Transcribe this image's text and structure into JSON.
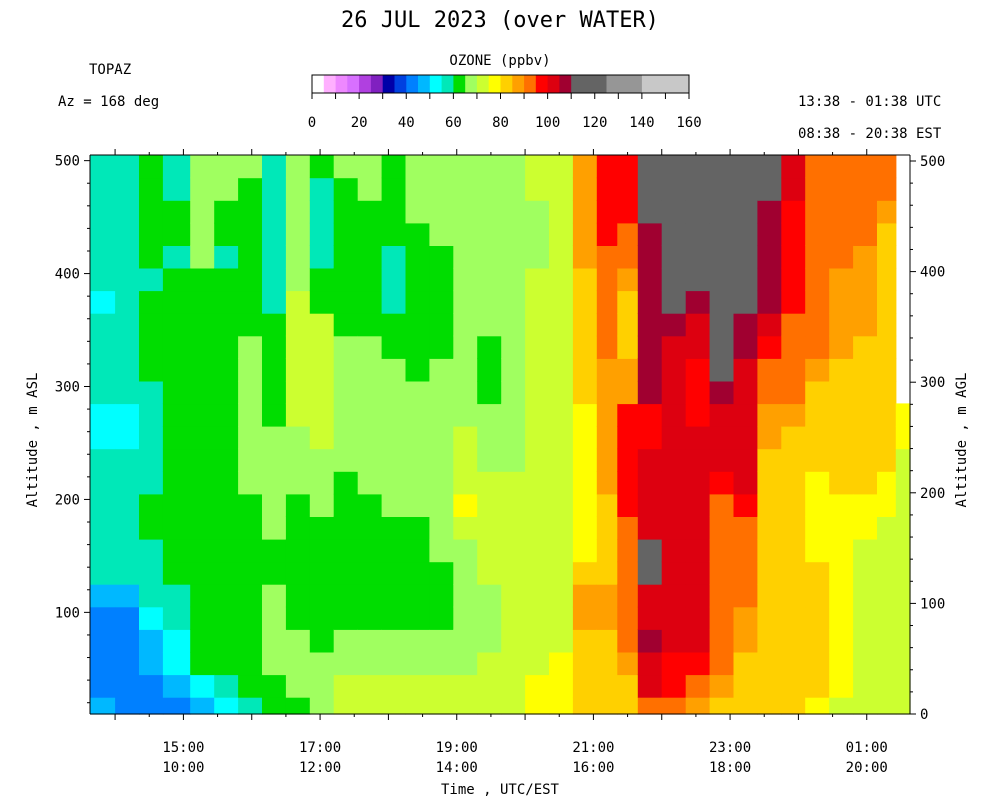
{
  "header": {
    "title": "26 JUL 2023 (over WATER)",
    "site": "TOPAZ",
    "azimuth": "Az = 168 deg",
    "time_utc": "13:38 - 01:38 UTC",
    "time_est": "08:38 - 20:38 EST"
  },
  "colorbar": {
    "title": "OZONE (ppbv)",
    "ticks": [
      "0",
      "20",
      "40",
      "60",
      "80",
      "100",
      "120",
      "140",
      "160"
    ],
    "range": [
      0,
      160
    ],
    "bins": [
      {
        "from": 0,
        "to": 5,
        "color": "#ffffff"
      },
      {
        "from": 5,
        "to": 10,
        "color": "#ffb0ff"
      },
      {
        "from": 10,
        "to": 15,
        "color": "#ee88ff"
      },
      {
        "from": 15,
        "to": 20,
        "color": "#d870ff"
      },
      {
        "from": 20,
        "to": 25,
        "color": "#b040e0"
      },
      {
        "from": 25,
        "to": 30,
        "color": "#8020c0"
      },
      {
        "from": 30,
        "to": 35,
        "color": "#0000a8"
      },
      {
        "from": 35,
        "to": 40,
        "color": "#0040e0"
      },
      {
        "from": 40,
        "to": 45,
        "color": "#0080ff"
      },
      {
        "from": 45,
        "to": 50,
        "color": "#00b8ff"
      },
      {
        "from": 50,
        "to": 55,
        "color": "#00ffff"
      },
      {
        "from": 55,
        "to": 60,
        "color": "#00e8b8"
      },
      {
        "from": 60,
        "to": 65,
        "color": "#00dd00"
      },
      {
        "from": 65,
        "to": 70,
        "color": "#a0ff60"
      },
      {
        "from": 70,
        "to": 75,
        "color": "#ccff30"
      },
      {
        "from": 75,
        "to": 80,
        "color": "#ffff00"
      },
      {
        "from": 80,
        "to": 85,
        "color": "#ffd000"
      },
      {
        "from": 85,
        "to": 90,
        "color": "#ffa000"
      },
      {
        "from": 90,
        "to": 95,
        "color": "#ff7000"
      },
      {
        "from": 95,
        "to": 100,
        "color": "#ff0000"
      },
      {
        "from": 100,
        "to": 105,
        "color": "#dd0010"
      },
      {
        "from": 105,
        "to": 110,
        "color": "#a00030"
      },
      {
        "from": 110,
        "to": 125,
        "color": "#646464"
      },
      {
        "from": 125,
        "to": 140,
        "color": "#969696"
      },
      {
        "from": 140,
        "to": 160,
        "color": "#c8c8c8"
      }
    ]
  },
  "chart_data": {
    "type": "heatmap",
    "title": "26 JUL 2023 (over WATER)",
    "variable": "OZONE (ppbv)",
    "xlabel": "Time , UTC/EST",
    "ylabel_left": "Altitude , m ASL",
    "ylabel_right": "Altitude , m AGL",
    "x_ticks": [
      {
        "utc": "15:00",
        "est": "10:00",
        "hour": 15
      },
      {
        "utc": "17:00",
        "est": "12:00",
        "hour": 17
      },
      {
        "utc": "19:00",
        "est": "14:00",
        "hour": 19
      },
      {
        "utc": "21:00",
        "est": "16:00",
        "hour": 21
      },
      {
        "utc": "23:00",
        "est": "18:00",
        "hour": 23
      },
      {
        "utc": "01:00",
        "est": "20:00",
        "hour": 25
      }
    ],
    "x_range_hours": [
      13.633,
      25.633
    ],
    "y_left_ticks": [
      100,
      200,
      300,
      400,
      500
    ],
    "y_left_range": [
      10,
      505
    ],
    "y_right_ticks": [
      0,
      100,
      200,
      300,
      400,
      500
    ],
    "y_right_range": [
      0,
      500
    ],
    "altitude_bins_m_asl": [
      15,
      35,
      55,
      75,
      95,
      115,
      135,
      155,
      175,
      195,
      215,
      235,
      255,
      275,
      295,
      315,
      335,
      355,
      375,
      395,
      415,
      435,
      455,
      475,
      495
    ],
    "time_columns": [
      {
        "hour": 13.8,
        "values": [
          45,
          42,
          42,
          40,
          42,
          45,
          55,
          55,
          55,
          55,
          55,
          55,
          52,
          52,
          55,
          55,
          55,
          55,
          52,
          55,
          55,
          55,
          55,
          55,
          55
        ]
      },
      {
        "hour": 14.2,
        "values": [
          42,
          40,
          40,
          42,
          42,
          45,
          55,
          55,
          55,
          55,
          55,
          55,
          52,
          52,
          55,
          55,
          55,
          55,
          55,
          55,
          55,
          55,
          55,
          55,
          55
        ]
      },
      {
        "hour": 14.5,
        "values": [
          42,
          42,
          45,
          45,
          50,
          55,
          55,
          55,
          60,
          60,
          55,
          55,
          55,
          55,
          55,
          60,
          60,
          62,
          62,
          55,
          60,
          60,
          62,
          62,
          62
        ]
      },
      {
        "hour": 14.9,
        "values": [
          42,
          45,
          50,
          50,
          55,
          55,
          60,
          62,
          62,
          62,
          62,
          62,
          60,
          60,
          60,
          62,
          62,
          62,
          62,
          62,
          55,
          62,
          62,
          55,
          55
        ]
      },
      {
        "hour": 15.3,
        "values": [
          45,
          50,
          60,
          62,
          62,
          62,
          62,
          62,
          62,
          62,
          62,
          62,
          62,
          62,
          62,
          62,
          62,
          62,
          62,
          62,
          66,
          66,
          66,
          66,
          66
        ]
      },
      {
        "hour": 15.6,
        "values": [
          50,
          55,
          62,
          62,
          62,
          60,
          62,
          62,
          60,
          62,
          62,
          62,
          62,
          62,
          62,
          62,
          62,
          62,
          62,
          62,
          58,
          62,
          62,
          66,
          66
        ]
      },
      {
        "hour": 16.0,
        "values": [
          55,
          62,
          62,
          62,
          62,
          62,
          62,
          60,
          60,
          60,
          66,
          66,
          66,
          66,
          66,
          66,
          66,
          62,
          62,
          62,
          62,
          62,
          62,
          62,
          66
        ]
      },
      {
        "hour": 16.3,
        "values": [
          62,
          62,
          66,
          66,
          66,
          66,
          62,
          62,
          66,
          66,
          66,
          66,
          66,
          62,
          62,
          62,
          62,
          62,
          58,
          58,
          58,
          58,
          58,
          58,
          58
        ]
      },
      {
        "hour": 16.7,
        "values": [
          62,
          66,
          66,
          66,
          62,
          62,
          62,
          62,
          62,
          62,
          66,
          66,
          66,
          70,
          72,
          72,
          72,
          72,
          72,
          66,
          66,
          66,
          66,
          66,
          66
        ]
      },
      {
        "hour": 17.0,
        "values": [
          66,
          66,
          66,
          62,
          62,
          62,
          62,
          62,
          62,
          66,
          66,
          66,
          70,
          72,
          72,
          72,
          72,
          72,
          62,
          62,
          58,
          55,
          55,
          58,
          62
        ]
      },
      {
        "hour": 17.4,
        "values": [
          72,
          72,
          66,
          66,
          62,
          62,
          62,
          62,
          62,
          62,
          62,
          66,
          66,
          66,
          66,
          66,
          66,
          62,
          62,
          62,
          62,
          62,
          62,
          62,
          66
        ]
      },
      {
        "hour": 17.7,
        "values": [
          70,
          72,
          66,
          66,
          62,
          62,
          62,
          62,
          62,
          62,
          66,
          66,
          66,
          66,
          66,
          66,
          66,
          62,
          62,
          62,
          62,
          62,
          62,
          66,
          66
        ]
      },
      {
        "hour": 18.1,
        "values": [
          70,
          72,
          66,
          66,
          62,
          62,
          62,
          62,
          62,
          66,
          66,
          66,
          66,
          66,
          66,
          66,
          62,
          62,
          55,
          55,
          58,
          62,
          62,
          62,
          62
        ]
      },
      {
        "hour": 18.4,
        "values": [
          70,
          72,
          66,
          66,
          62,
          62,
          62,
          62,
          62,
          66,
          66,
          66,
          66,
          66,
          66,
          62,
          62,
          62,
          62,
          62,
          62,
          62,
          66,
          66,
          66
        ]
      },
      {
        "hour": 18.8,
        "values": [
          72,
          72,
          66,
          66,
          62,
          62,
          62,
          66,
          66,
          66,
          66,
          66,
          66,
          66,
          66,
          66,
          62,
          62,
          62,
          62,
          62,
          66,
          66,
          66,
          66
        ]
      },
      {
        "hour": 19.1,
        "values": [
          72,
          72,
          66,
          66,
          66,
          66,
          66,
          66,
          70,
          76,
          72,
          72,
          72,
          66,
          66,
          66,
          66,
          66,
          66,
          66,
          66,
          66,
          66,
          66,
          66
        ]
      },
      {
        "hour": 19.5,
        "values": [
          72,
          72,
          70,
          66,
          66,
          66,
          70,
          72,
          72,
          72,
          70,
          66,
          66,
          66,
          62,
          62,
          62,
          66,
          66,
          66,
          66,
          66,
          66,
          66,
          66
        ]
      },
      {
        "hour": 19.8,
        "values": [
          72,
          72,
          72,
          70,
          70,
          70,
          72,
          72,
          72,
          72,
          72,
          66,
          66,
          66,
          66,
          66,
          66,
          66,
          66,
          66,
          66,
          66,
          66,
          66,
          66
        ]
      },
      {
        "hour": 20.2,
        "values": [
          76,
          76,
          72,
          72,
          72,
          72,
          72,
          72,
          72,
          72,
          72,
          72,
          72,
          72,
          72,
          72,
          72,
          72,
          72,
          72,
          66,
          66,
          66,
          72,
          72
        ]
      },
      {
        "hour": 20.5,
        "values": [
          76,
          76,
          76,
          72,
          72,
          72,
          72,
          72,
          72,
          72,
          72,
          72,
          72,
          72,
          72,
          72,
          72,
          72,
          72,
          72,
          72,
          72,
          72,
          72,
          72
        ]
      },
      {
        "hour": 20.9,
        "values": [
          82,
          80,
          80,
          84,
          85,
          85,
          80,
          76,
          76,
          76,
          76,
          76,
          76,
          76,
          80,
          80,
          82,
          82,
          82,
          82,
          85,
          85,
          88,
          88,
          88
        ]
      },
      {
        "hour": 21.2,
        "values": [
          80,
          80,
          80,
          84,
          85,
          88,
          84,
          84,
          84,
          84,
          85,
          88,
          88,
          88,
          88,
          88,
          90,
          90,
          92,
          92,
          92,
          96,
          96,
          97,
          97
        ]
      },
      {
        "hour": 21.5,
        "values": [
          80,
          84,
          88,
          90,
          90,
          92,
          92,
          92,
          92,
          95,
          97,
          97,
          97,
          97,
          88,
          88,
          84,
          84,
          84,
          88,
          90,
          92,
          97,
          97,
          97
        ]
      },
      {
        "hour": 21.8,
        "values": [
          92,
          100,
          104,
          106,
          104,
          100,
          112,
          112,
          100,
          100,
          104,
          104,
          97,
          97,
          106,
          106,
          106,
          106,
          108,
          108,
          108,
          108,
          112,
          112,
          112
        ]
      },
      {
        "hour": 22.2,
        "values": [
          92,
          96,
          97,
          100,
          102,
          102,
          100,
          100,
          100,
          102,
          102,
          102,
          100,
          100,
          104,
          104,
          104,
          106,
          112,
          112,
          112,
          112,
          112,
          112,
          112
        ]
      },
      {
        "hour": 22.5,
        "values": [
          88,
          90,
          96,
          100,
          102,
          100,
          100,
          100,
          100,
          100,
          100,
          100,
          100,
          97,
          97,
          97,
          104,
          104,
          108,
          112,
          112,
          112,
          112,
          112,
          112
        ]
      },
      {
        "hour": 22.9,
        "values": [
          84,
          88,
          90,
          90,
          90,
          90,
          90,
          92,
          92,
          92,
          97,
          100,
          104,
          104,
          106,
          112,
          112,
          112,
          112,
          112,
          112,
          112,
          112,
          112,
          112
        ]
      },
      {
        "hour": 23.2,
        "values": [
          84,
          84,
          84,
          88,
          88,
          90,
          90,
          90,
          92,
          97,
          100,
          100,
          104,
          104,
          104,
          104,
          106,
          106,
          112,
          112,
          112,
          112,
          112,
          112,
          112
        ]
      },
      {
        "hour": 23.6,
        "values": [
          80,
          82,
          82,
          84,
          84,
          84,
          84,
          80,
          80,
          80,
          82,
          84,
          88,
          88,
          90,
          92,
          97,
          100,
          106,
          106,
          106,
          106,
          106,
          112,
          112
        ]
      },
      {
        "hour": 23.9,
        "values": [
          80,
          80,
          82,
          84,
          84,
          84,
          82,
          80,
          80,
          80,
          82,
          84,
          84,
          88,
          90,
          90,
          92,
          92,
          97,
          97,
          97,
          97,
          97,
          100,
          100
        ]
      },
      {
        "hour": 24.3,
        "values": [
          76,
          80,
          80,
          80,
          80,
          80,
          80,
          76,
          76,
          76,
          76,
          80,
          80,
          84,
          84,
          88,
          90,
          90,
          92,
          92,
          92,
          92,
          92,
          92,
          92
        ]
      },
      {
        "hour": 24.6,
        "values": [
          72,
          76,
          76,
          76,
          76,
          76,
          76,
          76,
          76,
          76,
          80,
          80,
          82,
          82,
          84,
          84,
          88,
          88,
          88,
          88,
          90,
          90,
          92,
          92,
          92
        ]
      },
      {
        "hour": 25.0,
        "values": [
          72,
          72,
          72,
          72,
          72,
          72,
          72,
          72,
          76,
          76,
          80,
          80,
          80,
          80,
          84,
          84,
          84,
          86,
          88,
          88,
          88,
          90,
          90,
          92,
          92
        ]
      },
      {
        "hour": 25.3,
        "values": [
          72,
          72,
          72,
          72,
          72,
          72,
          72,
          72,
          72,
          76,
          76,
          80,
          80,
          80,
          84,
          84,
          82,
          82,
          82,
          82,
          82,
          84,
          88,
          90,
          92
        ]
      },
      {
        "hour": 25.55,
        "values": [
          72,
          72,
          72,
          72,
          72,
          72,
          72,
          72,
          72,
          72,
          72,
          72,
          76,
          76,
          null,
          null,
          null,
          null,
          null,
          null,
          null,
          null,
          null,
          null,
          null
        ]
      }
    ]
  }
}
